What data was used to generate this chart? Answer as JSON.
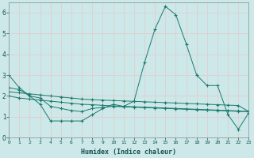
{
  "xlabel": "Humidex (Indice chaleur)",
  "background_color": "#cce8e8",
  "line_color": "#1a7a6e",
  "grid_color": "#e8c8c8",
  "xlim": [
    0,
    23
  ],
  "ylim": [
    0,
    6.5
  ],
  "yticks": [
    0,
    1,
    2,
    3,
    4,
    5,
    6
  ],
  "xticks": [
    0,
    1,
    2,
    3,
    4,
    5,
    6,
    7,
    8,
    9,
    10,
    11,
    12,
    13,
    14,
    15,
    16,
    17,
    18,
    19,
    20,
    21,
    22,
    23
  ],
  "lines": [
    [
      3.0,
      2.4,
      2.0,
      1.6,
      0.8,
      0.8,
      0.8,
      0.8,
      1.1,
      1.4,
      1.6,
      1.5,
      1.75,
      3.6,
      5.2,
      6.3,
      5.9,
      4.5,
      3.0,
      2.5,
      2.5,
      1.1,
      0.4,
      1.2
    ],
    [
      2.0,
      1.9,
      1.85,
      1.8,
      1.75,
      1.7,
      1.65,
      1.6,
      1.58,
      1.55,
      1.52,
      1.5,
      1.48,
      1.46,
      1.44,
      1.42,
      1.4,
      1.38,
      1.36,
      1.34,
      1.32,
      1.3,
      1.28,
      1.25
    ],
    [
      2.2,
      2.15,
      2.1,
      2.05,
      2.0,
      1.95,
      1.9,
      1.85,
      1.82,
      1.8,
      1.78,
      1.76,
      1.74,
      1.72,
      1.7,
      1.68,
      1.66,
      1.64,
      1.62,
      1.6,
      1.58,
      1.56,
      1.54,
      1.25
    ],
    [
      2.4,
      2.3,
      2.0,
      1.9,
      1.5,
      1.4,
      1.3,
      1.25,
      1.4,
      1.45,
      1.5,
      1.48,
      1.46,
      1.44,
      1.42,
      1.4,
      1.38,
      1.36,
      1.34,
      1.32,
      1.3,
      1.28,
      1.26,
      1.25
    ]
  ]
}
